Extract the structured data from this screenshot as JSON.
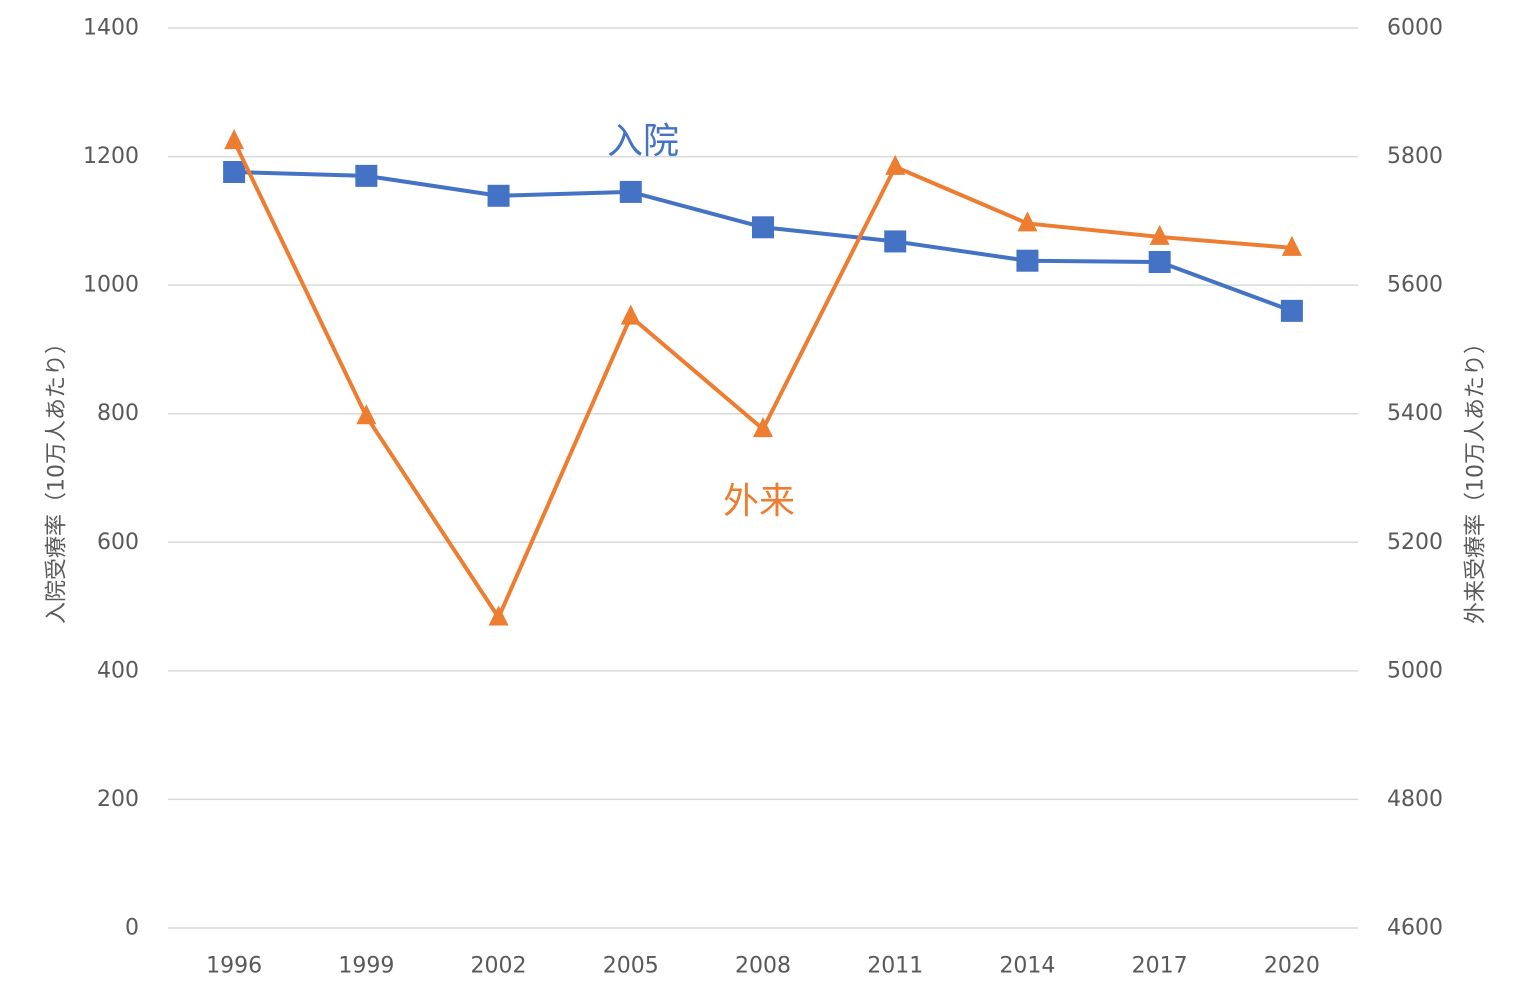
{
  "chart_data": {
    "type": "line",
    "categories": [
      "1996",
      "1999",
      "2002",
      "2005",
      "2008",
      "2011",
      "2014",
      "2017",
      "2020"
    ],
    "y_left": {
      "label": "入院受療率（10万人あたり）",
      "min": 0,
      "max": 1400,
      "step": 200,
      "ticks": [
        "0",
        "200",
        "400",
        "600",
        "800",
        "1000",
        "1200",
        "1400"
      ]
    },
    "y_right": {
      "label": "外来受療率（10万人あたり）",
      "min": 4600,
      "max": 6000,
      "step": 200,
      "ticks": [
        "4600",
        "4800",
        "5000",
        "5200",
        "5400",
        "5600",
        "5800",
        "6000"
      ]
    },
    "grid": true,
    "legend": "none",
    "series": [
      {
        "name": "入院",
        "axis": "left",
        "color": "#4472c4",
        "marker": "square",
        "values": [
          1176,
          1170,
          1139,
          1145,
          1090,
          1068,
          1038,
          1036,
          960
        ]
      },
      {
        "name": "外来",
        "axis": "right",
        "color": "#ed7d31",
        "marker": "triangle",
        "values": [
          5824,
          5396,
          5083,
          5551,
          5376,
          5784,
          5696,
          5675,
          5658
        ]
      }
    ],
    "annotations": [
      {
        "text": "入院",
        "color": "#4472c4"
      },
      {
        "text": "外来",
        "color": "#ed7d31"
      }
    ]
  }
}
